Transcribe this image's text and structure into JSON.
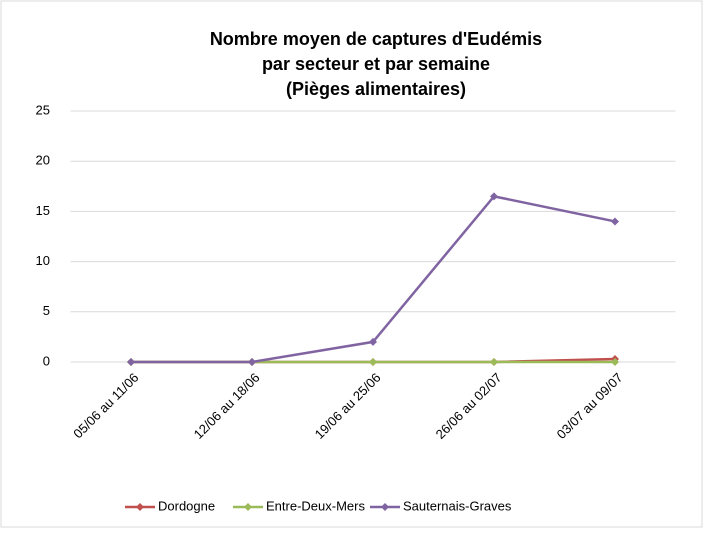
{
  "chart_data": {
    "type": "line",
    "title": [
      "Nombre moyen de captures d'Eudémis",
      "par secteur et par semaine",
      "(Pièges alimentaires)"
    ],
    "categories": [
      "05/06 au 11/06",
      "12/06 au 18/06",
      "19/06 au 25/06",
      "26/06 au 02/07",
      "03/07 au 09/07"
    ],
    "series": [
      {
        "name": "Dordogne",
        "color": "#c0504d",
        "values": [
          0,
          0,
          0,
          0,
          0.3
        ]
      },
      {
        "name": "Entre-Deux-Mers",
        "color": "#9bbb59",
        "values": [
          0,
          0,
          0,
          0,
          0
        ]
      },
      {
        "name": "Sauternais-Graves",
        "color": "#8064a2",
        "values": [
          0,
          0,
          2,
          16.5,
          14
        ]
      }
    ],
    "ylim": [
      0,
      25
    ],
    "yticks": [
      0,
      5,
      10,
      15,
      20,
      25
    ],
    "grid": true,
    "legend": "bottom"
  }
}
